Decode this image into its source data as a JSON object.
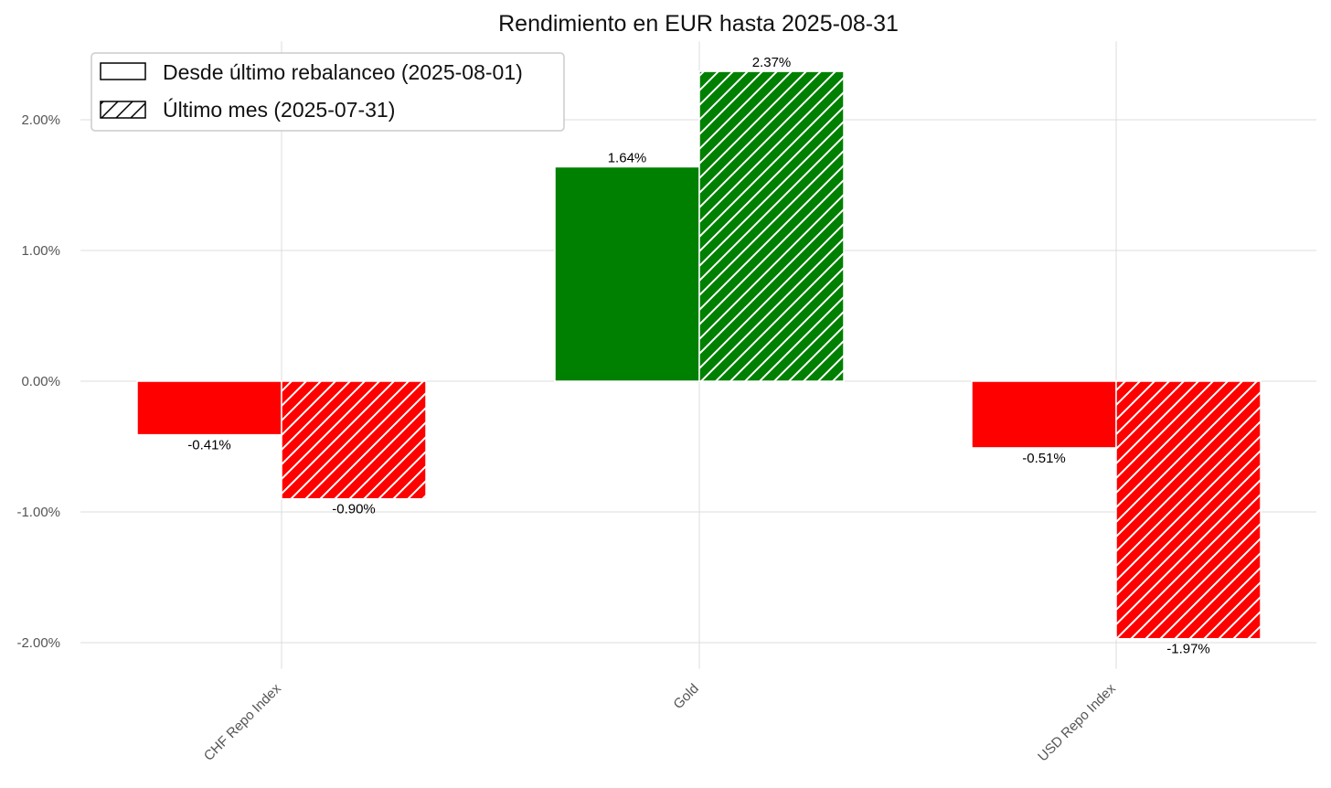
{
  "chart_data": {
    "type": "bar",
    "title": "Rendimiento en EUR hasta 2025-08-31",
    "categories": [
      "CHF Repo Index",
      "Gold",
      "USD Repo Index"
    ],
    "series": [
      {
        "name": "Desde último rebalanceo (2025-08-01)",
        "values": [
          -0.41,
          1.64,
          -0.51
        ],
        "hatch": false
      },
      {
        "name": "Último mes (2025-07-31)",
        "values": [
          -0.9,
          2.37,
          -1.97
        ],
        "hatch": true
      }
    ],
    "data_labels": [
      [
        "-0.41%",
        "1.64%",
        "-0.51%"
      ],
      [
        "-0.90%",
        "2.37%",
        "-1.97%"
      ]
    ],
    "yticks": [
      2.0,
      1.0,
      0.0,
      -1.0,
      -2.0
    ],
    "ytick_labels": [
      "2.00%",
      "1.00%",
      "0.00%",
      "-1.00%",
      "-2.00%"
    ],
    "ylim": [
      -2.2,
      2.6
    ],
    "xlabel": "",
    "ylabel": "",
    "grid": true,
    "legend_position": "top-left",
    "colors": {
      "positive": "#008000",
      "negative": "#ff0000",
      "hatch": "#ffffff"
    }
  }
}
